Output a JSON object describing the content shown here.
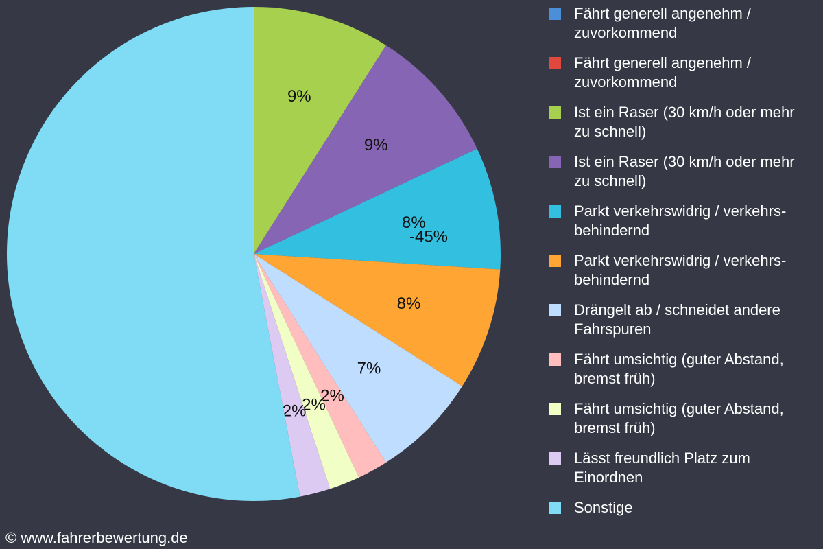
{
  "chart_data": {
    "type": "pie",
    "categories": [
      "Fährt generell angenehm / zuvorkommend",
      "Fährt generell angenehm / zuvorkommend",
      "Ist ein Raser (30 km/h oder mehr zu schnell)",
      "Ist ein Raser (30 km/h oder mehr zu schnell)",
      "Parkt verkehrswidrig / verkehrs-behindernd",
      "Parkt verkehrswidrig / verkehrs-behindernd",
      "Drängelt ab / schneidet andere Fahrspuren",
      "Fährt umsichtig (guter Abstand, bremst früh)",
      "Fährt umsichtig (guter Abstand, bremst früh)",
      "Lässt freundlich Platz zum Einordnen",
      "Sonstige"
    ],
    "values": [
      0,
      0,
      9,
      9,
      8,
      8,
      7,
      2,
      2,
      2,
      53
    ],
    "value_labels": [
      null,
      null,
      "9%",
      "9%",
      "8%",
      "8%",
      "7%",
      "2%",
      "2%",
      "2%",
      null
    ],
    "colors": [
      "#4a8fd8",
      "#e0483d",
      "#a8d04f",
      "#8665b4",
      "#33bfe0",
      "#ffa533",
      "#bfdeff",
      "#ffbdbd",
      "#f1ffc6",
      "#dccaf3",
      "#80dcf4"
    ],
    "annotation": "-45%",
    "footer": "© www.fahrerbewertung.de"
  }
}
